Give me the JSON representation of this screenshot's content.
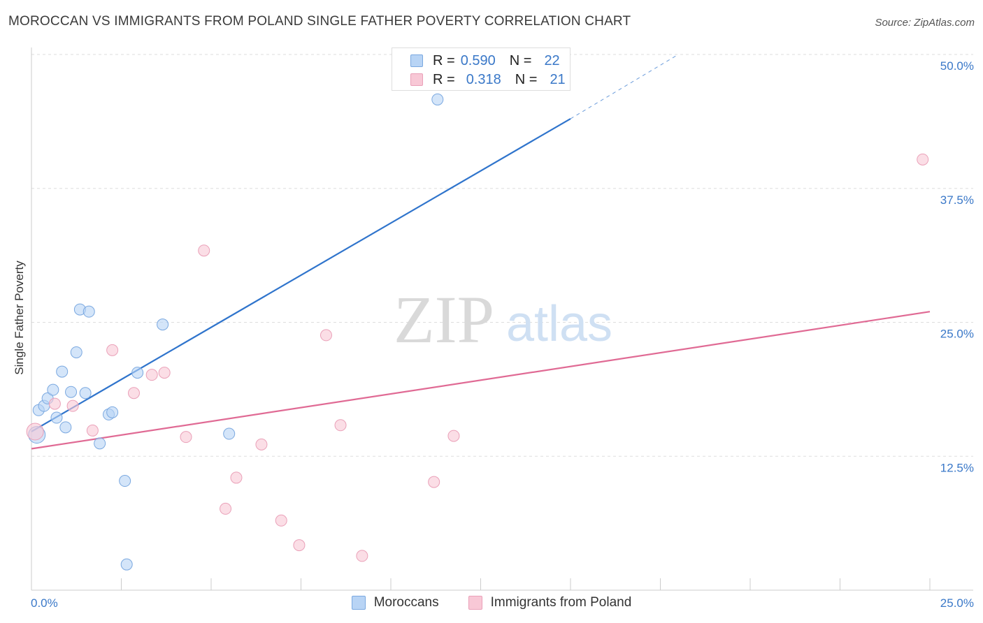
{
  "title": "MOROCCAN VS IMMIGRANTS FROM POLAND SINGLE FATHER POVERTY CORRELATION CHART",
  "source": "Source: ZipAtlas.com",
  "watermark": {
    "zip": "ZIP",
    "atlas": "atlas"
  },
  "legend": {
    "r_label": "R =",
    "n_label": "N =",
    "series": [
      {
        "r": "0.590",
        "n": "22"
      },
      {
        "r": "0.318",
        "n": "21"
      }
    ]
  },
  "colors": {
    "blue_fill": "#b8d4f5",
    "blue_stroke": "#7aa8e0",
    "blue_line": "#2f74cc",
    "pink_fill": "#f8c8d6",
    "pink_stroke": "#eaa0b8",
    "pink_line": "#e06a94",
    "axis_text": "#3a78c8",
    "grid": "#dddddd"
  },
  "chart_data": {
    "type": "scatter",
    "title": "MOROCCAN VS IMMIGRANTS FROM POLAND SINGLE FATHER POVERTY CORRELATION CHART",
    "xlabel": "",
    "ylabel": "Single Father Poverty",
    "xlim": [
      0,
      25
    ],
    "ylim": [
      0,
      50
    ],
    "x_ticks": [
      {
        "value": 0,
        "label": "0.0%"
      },
      {
        "value": 25,
        "label": "25.0%"
      }
    ],
    "y_ticks": [
      {
        "value": 12.5,
        "label": "12.5%"
      },
      {
        "value": 25,
        "label": "25.0%"
      },
      {
        "value": 37.5,
        "label": "37.5%"
      },
      {
        "value": 50,
        "label": "50.0%"
      }
    ],
    "series": [
      {
        "name": "Moroccans",
        "color": "#b8d4f5",
        "points": [
          [
            0.15,
            14.5
          ],
          [
            0.2,
            16.8
          ],
          [
            0.35,
            17.2
          ],
          [
            0.45,
            17.9
          ],
          [
            0.6,
            18.7
          ],
          [
            0.7,
            16.1
          ],
          [
            0.85,
            20.4
          ],
          [
            0.95,
            15.2
          ],
          [
            1.1,
            18.5
          ],
          [
            1.25,
            22.2
          ],
          [
            1.35,
            26.2
          ],
          [
            1.5,
            18.4
          ],
          [
            1.6,
            26.0
          ],
          [
            1.9,
            13.7
          ],
          [
            2.15,
            16.4
          ],
          [
            2.25,
            16.6
          ],
          [
            2.6,
            10.2
          ],
          [
            2.65,
            2.4
          ],
          [
            2.95,
            20.3
          ],
          [
            3.65,
            24.8
          ],
          [
            5.5,
            14.6
          ],
          [
            11.3,
            45.8
          ]
        ],
        "trendline": {
          "x0": 0,
          "y0": 14.8,
          "x1": 15,
          "y1": 44.0,
          "dashed_to_x": 18,
          "dashed_to_y": 50.0
        }
      },
      {
        "name": "Immigrants from Poland",
        "color": "#f8c8d6",
        "points": [
          [
            0.1,
            14.8
          ],
          [
            0.65,
            17.4
          ],
          [
            1.15,
            17.2
          ],
          [
            1.7,
            14.9
          ],
          [
            2.25,
            22.4
          ],
          [
            2.85,
            18.4
          ],
          [
            3.35,
            20.1
          ],
          [
            3.7,
            20.3
          ],
          [
            4.3,
            14.3
          ],
          [
            4.8,
            31.7
          ],
          [
            5.4,
            7.6
          ],
          [
            5.7,
            10.5
          ],
          [
            6.4,
            13.6
          ],
          [
            6.95,
            6.5
          ],
          [
            7.45,
            4.2
          ],
          [
            8.2,
            23.8
          ],
          [
            8.6,
            15.4
          ],
          [
            9.2,
            3.2
          ],
          [
            11.2,
            10.1
          ],
          [
            11.75,
            14.4
          ],
          [
            24.8,
            40.2
          ]
        ],
        "trendline": {
          "x0": 0,
          "y0": 13.2,
          "x1": 25,
          "y1": 26.0
        }
      }
    ]
  }
}
